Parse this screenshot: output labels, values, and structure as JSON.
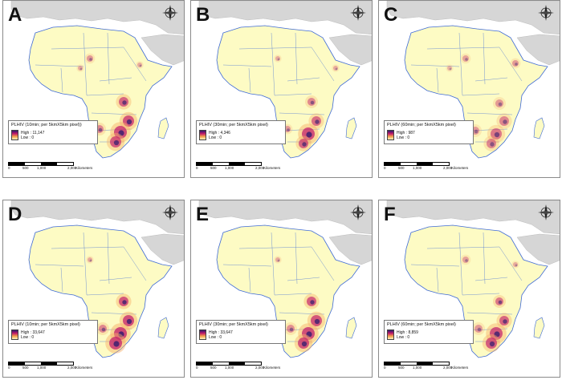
{
  "colors": {
    "land": "#fdfbc4",
    "ocean": "#ffffff",
    "other_land": "#d6d6d6",
    "border": "#3f6bd6",
    "hot": "#c0186a",
    "dark": "#2a1a6e"
  },
  "icons": {
    "compass": "north-arrow-compass-icon"
  },
  "panels": [
    {
      "label": "A",
      "legend_title": "PLHIV (10min; per 5kmX5km pixel))",
      "high": "High : 11,147",
      "low": "Low : 0"
    },
    {
      "label": "B",
      "legend_title": "PLHIV (30min; per 5kmX5km pixel)",
      "high": "High : 4,346",
      "low": "Low : 0"
    },
    {
      "label": "C",
      "legend_title": "PLHIV (60min; per 5kmX5km pixel)",
      "high": "High : 987",
      "low": "Low : 0"
    },
    {
      "label": "D",
      "legend_title": "PLHIV (10min; per 5kmX5km pixel)",
      "high": "High : 33,647",
      "low": "Low : 0"
    },
    {
      "label": "E",
      "legend_title": "PLHIV (30min; per 5kmX5km pixel)",
      "high": "High : 33,647",
      "low": "Low : 0"
    },
    {
      "label": "F",
      "legend_title": "PLHIV (60min; per 5kmX5km pixel)",
      "high": "High : 8,859",
      "low": "Low : 0"
    }
  ],
  "scale": {
    "t0": "0",
    "t500": "500",
    "t1000": "1,000",
    "t2000": "2,000",
    "unit": "Kilometers"
  }
}
